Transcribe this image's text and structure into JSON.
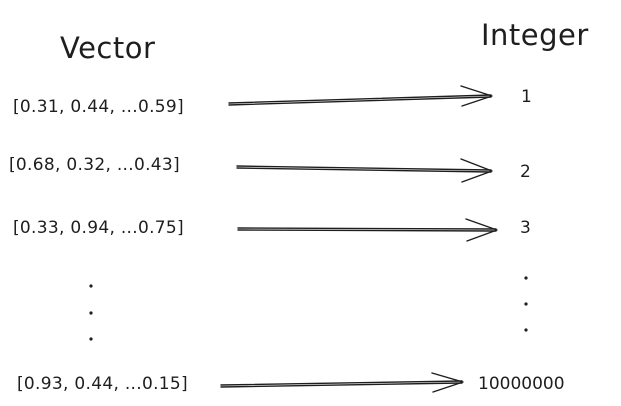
{
  "headers": {
    "left": "Vector",
    "right": "Integer"
  },
  "rows": [
    {
      "vector": "[0.31, 0.44, ...0.59]",
      "integer": "1"
    },
    {
      "vector": "[0.68, 0.32, ...0.43]",
      "integer": "2"
    },
    {
      "vector": "[0.33, 0.94, ...0.75]",
      "integer": "3"
    },
    {
      "vector": "[0.93, 0.44, ...0.15]",
      "integer": "10000000"
    }
  ],
  "ellipsis": {
    "left_dots": 3,
    "right_dots": 3
  }
}
